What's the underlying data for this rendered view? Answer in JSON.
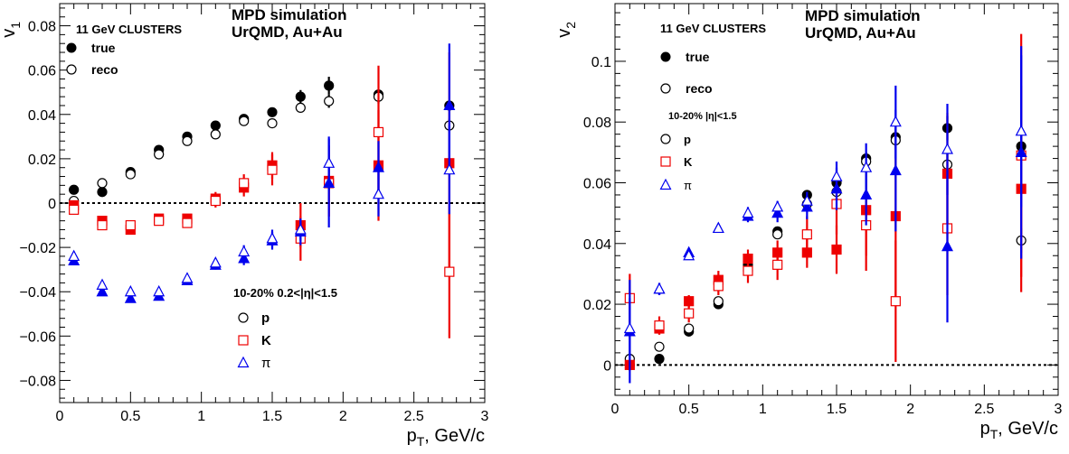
{
  "colors": {
    "p": "#000000",
    "K": "#ee0000",
    "pi": "#0000ee"
  },
  "chart_data": [
    {
      "type": "scatter",
      "ylabel_main": "v",
      "ylabel_sub": "1",
      "xlabel_main": "p",
      "xlabel_sub": "T",
      "xlabel_rest": ", GeV/c",
      "xlim": [
        0,
        3
      ],
      "ylim": [
        -0.09,
        0.09
      ],
      "xticks": [
        0,
        0.5,
        1,
        1.5,
        2,
        2.5,
        3
      ],
      "xtick_labels": [
        "0",
        "0.5",
        "1",
        "1.5",
        "2",
        "2.5",
        "3"
      ],
      "yticks": [
        -0.08,
        -0.06,
        -0.04,
        -0.02,
        0,
        0.02,
        0.04,
        0.06,
        0.08
      ],
      "ytick_labels": [
        "−0.08",
        "−0.06",
        "−0.04",
        "−0.02",
        "0",
        "0.02",
        "0.04",
        "0.06",
        "0.08"
      ],
      "grid": false,
      "zero_line": true,
      "annotations": {
        "tag": "11 GeV CLUSTERS",
        "sim_line1": "MPD simulation",
        "sim_line2": "UrQMD, Au+Au",
        "cut": "10-20% 0.2<|η|<1.5"
      },
      "legend": {
        "true": "true",
        "reco": "reco",
        "p": "p",
        "K": "K",
        "pi": "π"
      },
      "series": [
        {
          "particle": "p",
          "kind": "true",
          "x": [
            0.1,
            0.3,
            0.5,
            0.7,
            0.9,
            1.1,
            1.3,
            1.5,
            1.7,
            1.9,
            2.25,
            2.75
          ],
          "y": [
            0.006,
            0.005,
            0.014,
            0.024,
            0.03,
            0.035,
            0.038,
            0.041,
            0.048,
            0.053,
            0.049,
            0.044
          ],
          "err": [
            0.002,
            0.001,
            0.001,
            0.001,
            0.001,
            0.001,
            0.001,
            0.001,
            0.003,
            0.004,
            0.002,
            0.002
          ]
        },
        {
          "particle": "p",
          "kind": "reco",
          "x": [
            0.1,
            0.3,
            0.5,
            0.7,
            0.9,
            1.1,
            1.3,
            1.5,
            1.7,
            1.9,
            2.25,
            2.75
          ],
          "y": [
            0.001,
            0.009,
            0.013,
            0.022,
            0.028,
            0.031,
            0.037,
            0.036,
            0.043,
            0.046,
            0.048,
            0.035
          ],
          "err": [
            0.002,
            0.001,
            0.001,
            0.001,
            0.001,
            0.001,
            0.001,
            0.001,
            0.002,
            0.003,
            0.003,
            0.003
          ]
        },
        {
          "particle": "K",
          "kind": "true",
          "x": [
            0.1,
            0.3,
            0.5,
            0.7,
            0.9,
            1.1,
            1.3,
            1.5,
            1.7,
            1.9,
            2.25,
            2.75
          ],
          "y": [
            -0.001,
            -0.008,
            -0.012,
            -0.007,
            -0.007,
            0.002,
            0.007,
            0.017,
            -0.01,
            0.01,
            0.017,
            0.018
          ],
          "err": [
            0.002,
            0.002,
            0.002,
            0.002,
            0.002,
            0.003,
            0.004,
            0.006,
            0.01,
            0.016,
            0.025,
            0.05
          ]
        },
        {
          "particle": "K",
          "kind": "reco",
          "x": [
            0.1,
            0.3,
            0.5,
            0.7,
            0.9,
            1.1,
            1.3,
            1.5,
            1.7,
            1.9,
            2.25,
            2.75
          ],
          "y": [
            -0.003,
            -0.01,
            -0.01,
            -0.008,
            -0.009,
            0.001,
            0.009,
            0.015,
            -0.016,
            0.009,
            0.032,
            -0.031
          ],
          "err": [
            0.002,
            0.002,
            0.002,
            0.002,
            0.002,
            0.003,
            0.004,
            0.007,
            0.01,
            0.015,
            0.03,
            0.03
          ]
        },
        {
          "particle": "pi",
          "kind": "true",
          "x": [
            0.1,
            0.3,
            0.5,
            0.7,
            0.9,
            1.1,
            1.3,
            1.5,
            1.7,
            1.9,
            2.25,
            2.75
          ],
          "y": [
            -0.026,
            -0.04,
            -0.043,
            -0.042,
            -0.035,
            -0.028,
            -0.025,
            -0.017,
            -0.013,
            0.009,
            0.016,
            0.044
          ],
          "err": [
            0.001,
            0.001,
            0.001,
            0.001,
            0.001,
            0.002,
            0.003,
            0.004,
            0.006,
            0.02,
            0.012,
            0.028
          ]
        },
        {
          "particle": "pi",
          "kind": "reco",
          "x": [
            0.1,
            0.3,
            0.5,
            0.7,
            0.9,
            1.1,
            1.3,
            1.5,
            1.7,
            1.9,
            2.25,
            2.75
          ],
          "y": [
            -0.024,
            -0.037,
            -0.04,
            -0.04,
            -0.034,
            -0.027,
            -0.022,
            -0.016,
            -0.012,
            0.018,
            0.004,
            0.015
          ],
          "err": [
            0.001,
            0.001,
            0.001,
            0.001,
            0.001,
            0.002,
            0.003,
            0.004,
            0.005,
            0.012,
            0.01,
            0.02
          ]
        }
      ]
    },
    {
      "type": "scatter",
      "ylabel_main": "v",
      "ylabel_sub": "2",
      "xlabel_main": "p",
      "xlabel_sub": "T",
      "xlabel_rest": ", GeV/c",
      "xlim": [
        0,
        3
      ],
      "ylim": [
        -0.01,
        0.119
      ],
      "xticks": [
        0,
        0.5,
        1,
        1.5,
        2,
        2.5,
        3
      ],
      "xtick_labels": [
        "0",
        "0.5",
        "1",
        "1.5",
        "2",
        "2.5",
        "3"
      ],
      "yticks": [
        0,
        0.02,
        0.04,
        0.06,
        0.08,
        0.1
      ],
      "ytick_labels": [
        "0",
        "0.02",
        "0.04",
        "0.06",
        "0.08",
        "0.1"
      ],
      "grid": false,
      "zero_line": true,
      "annotations": {
        "tag": "11 GeV CLUSTERS",
        "sim_line1": "MPD simulation",
        "sim_line2": "UrQMD, Au+Au",
        "cut": "10-20% |η|<1.5"
      },
      "legend": {
        "true": "true",
        "reco": "reco",
        "p": "p",
        "K": "K",
        "pi": "π"
      },
      "series": [
        {
          "particle": "p",
          "kind": "true",
          "x": [
            0.1,
            0.3,
            0.5,
            0.7,
            0.9,
            1.1,
            1.3,
            1.5,
            1.7,
            1.9,
            2.25,
            2.75
          ],
          "y": [
            0.0,
            0.002,
            0.011,
            0.02,
            0.033,
            0.044,
            0.056,
            0.06,
            0.068,
            0.075,
            0.078,
            0.072
          ],
          "err": [
            0.001,
            0.001,
            0.001,
            0.001,
            0.001,
            0.001,
            0.001,
            0.002,
            0.002,
            0.003,
            0.004,
            0.004
          ]
        },
        {
          "particle": "p",
          "kind": "reco",
          "x": [
            0.1,
            0.3,
            0.5,
            0.7,
            0.9,
            1.1,
            1.3,
            1.5,
            1.7,
            1.9,
            2.25,
            2.75
          ],
          "y": [
            0.002,
            0.006,
            0.012,
            0.021,
            0.031,
            0.043,
            0.053,
            0.057,
            0.067,
            0.074,
            0.066,
            0.041
          ],
          "err": [
            0.001,
            0.001,
            0.001,
            0.001,
            0.001,
            0.001,
            0.002,
            0.002,
            0.002,
            0.003,
            0.004,
            0.004
          ]
        },
        {
          "particle": "K",
          "kind": "true",
          "x": [
            0.1,
            0.3,
            0.5,
            0.7,
            0.9,
            1.1,
            1.3,
            1.5,
            1.7,
            1.9,
            2.25,
            2.75
          ],
          "y": [
            0.0,
            0.012,
            0.021,
            0.028,
            0.035,
            0.037,
            0.037,
            0.038,
            0.051,
            0.049,
            0.063,
            0.058
          ],
          "err": [
            0.002,
            0.002,
            0.002,
            0.003,
            0.003,
            0.004,
            0.005,
            0.008,
            0.015,
            0.028,
            0.02,
            0.034
          ]
        },
        {
          "particle": "K",
          "kind": "reco",
          "x": [
            0.1,
            0.3,
            0.5,
            0.7,
            0.9,
            1.1,
            1.3,
            1.5,
            1.7,
            1.9,
            2.25,
            2.75
          ],
          "y": [
            0.022,
            0.013,
            0.017,
            0.026,
            0.031,
            0.033,
            0.043,
            0.053,
            0.046,
            0.021,
            0.045,
            0.069
          ],
          "err": [
            0.008,
            0.003,
            0.003,
            0.003,
            0.004,
            0.005,
            0.006,
            0.01,
            0.015,
            0.02,
            0.022,
            0.04
          ]
        },
        {
          "particle": "pi",
          "kind": "true",
          "x": [
            0.1,
            0.3,
            0.5,
            0.7,
            0.9,
            1.1,
            1.3,
            1.5,
            1.7,
            1.9,
            2.25,
            2.75
          ],
          "y": [
            0.011,
            0.025,
            0.037,
            0.045,
            0.049,
            0.05,
            0.052,
            0.058,
            0.056,
            0.064,
            0.039,
            0.07
          ],
          "err": [
            0.017,
            0.002,
            0.001,
            0.001,
            0.002,
            0.003,
            0.004,
            0.007,
            0.01,
            0.02,
            0.025,
            0.035
          ]
        },
        {
          "particle": "pi",
          "kind": "reco",
          "x": [
            0.1,
            0.3,
            0.5,
            0.7,
            0.9,
            1.1,
            1.3,
            1.5,
            1.7,
            1.9,
            2.25,
            2.75
          ],
          "y": [
            0.012,
            0.025,
            0.036,
            0.045,
            0.05,
            0.052,
            0.054,
            0.062,
            0.065,
            0.08,
            0.071,
            0.077
          ],
          "err": [
            0.01,
            0.002,
            0.001,
            0.001,
            0.002,
            0.002,
            0.003,
            0.005,
            0.008,
            0.012,
            0.015,
            0.025
          ]
        }
      ]
    }
  ]
}
